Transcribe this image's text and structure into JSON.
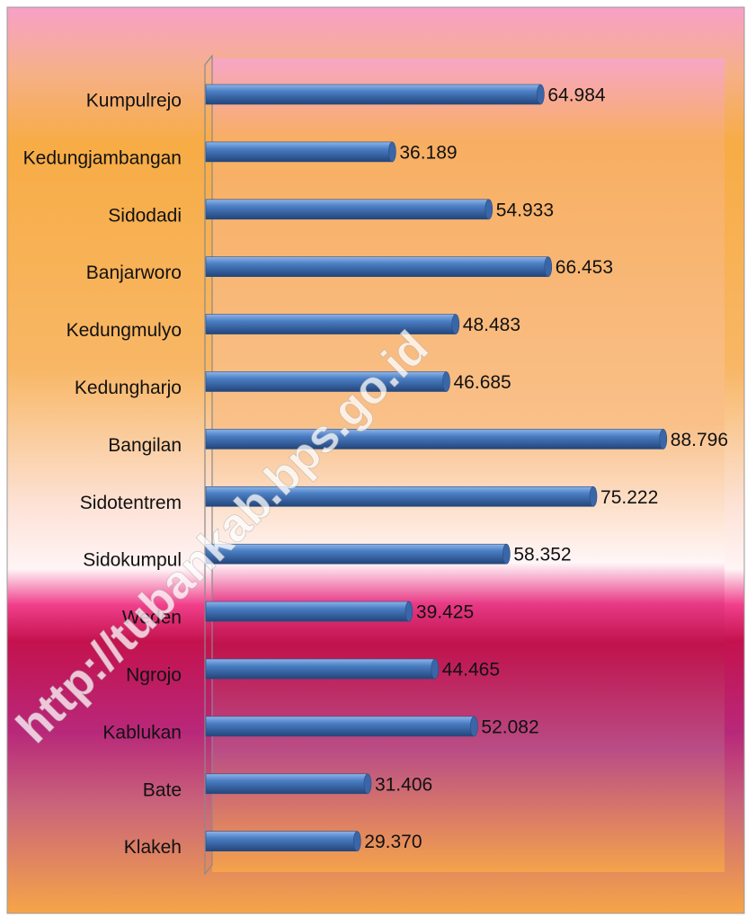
{
  "chart_data": {
    "type": "bar",
    "orientation": "horizontal",
    "categories": [
      "Kumpulrejo",
      "Kedungjambangan",
      "Sidodadi",
      "Banjarworo",
      "Kedungmulyo",
      "Kedungharjo",
      "Bangilan",
      "Sidotentrem",
      "Sidokumpul",
      "Weden",
      "Ngrojo",
      "Kablukan",
      "Bate",
      "Klakeh"
    ],
    "values": [
      64.984,
      36.189,
      54.933,
      66.453,
      48.483,
      46.685,
      88.796,
      75.222,
      58.352,
      39.425,
      44.465,
      52.082,
      31.406,
      29.37
    ],
    "value_labels": [
      "64.984",
      "36.189",
      "54.933",
      "66.453",
      "48.483",
      "46.685",
      "88.796",
      "75.222",
      "58.352",
      "39.425",
      "44.465",
      "52.082",
      "31.406",
      "29.370"
    ],
    "color": "#4a7ec4",
    "watermark": "http://tubankab.bps.go.id"
  }
}
